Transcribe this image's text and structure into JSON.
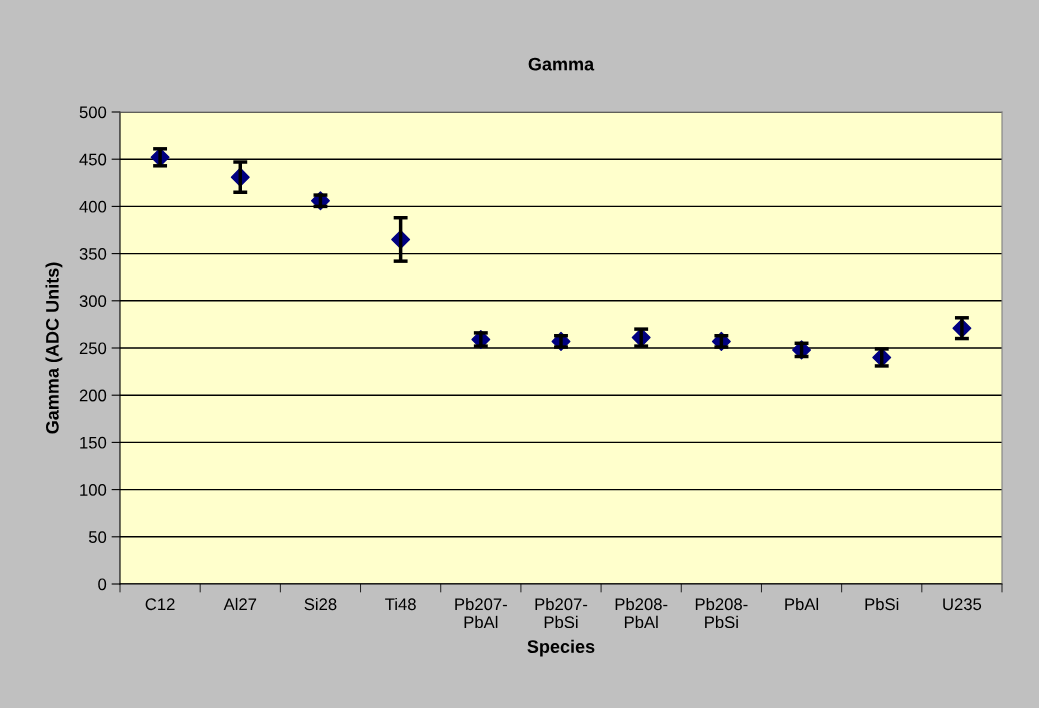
{
  "chart_data": {
    "type": "scatter",
    "title": "Gamma",
    "xlabel": "Species",
    "ylabel": "Gamma (ADC Units)",
    "categories": [
      "C12",
      "Al27",
      "Si28",
      "Ti48",
      "Pb207-\nPbAl",
      "Pb207-\nPbSi",
      "Pb208-\nPbAl",
      "Pb208-\nPbSi",
      "PbAl",
      "PbSi",
      "U235"
    ],
    "values": [
      452,
      431,
      406,
      365,
      259,
      257,
      261,
      257,
      248,
      240,
      271
    ],
    "errors": [
      9,
      16,
      6,
      23,
      7,
      6,
      9,
      6,
      7,
      9,
      11
    ],
    "color": "#000080",
    "marker": "diamond",
    "ylim": [
      0,
      500
    ],
    "yticks": [
      0,
      50,
      100,
      150,
      200,
      250,
      300,
      350,
      400,
      450,
      500
    ],
    "grid": "y"
  }
}
